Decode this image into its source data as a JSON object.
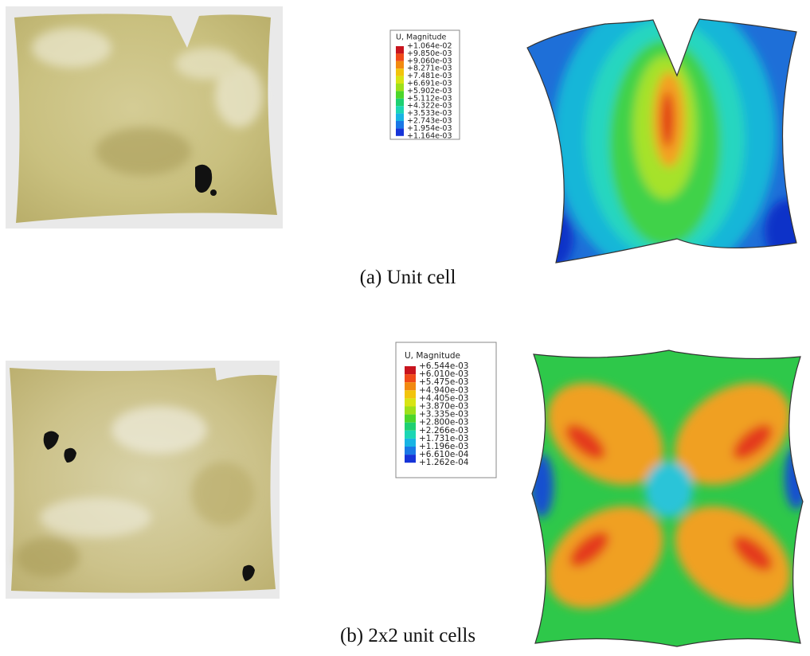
{
  "panels": [
    {
      "caption": "(a) Unit cell",
      "legend": {
        "title": "U, Magnitude",
        "labels": [
          "+1.064e-02",
          "+9.850e-03",
          "+9.060e-03",
          "+8.271e-03",
          "+7.481e-03",
          "+6.691e-03",
          "+5.902e-03",
          "+5.112e-03",
          "+4.322e-03",
          "+3.533e-03",
          "+2.743e-03",
          "+1.954e-03",
          "+1.164e-03"
        ]
      }
    },
    {
      "caption": "(b) 2x2 unit cells",
      "legend": {
        "title": "U, Magnitude",
        "labels": [
          "+6.544e-03",
          "+6.010e-03",
          "+5.475e-03",
          "+4.940e-03",
          "+4.405e-03",
          "+3.870e-03",
          "+3.335e-03",
          "+2.800e-03",
          "+2.266e-03",
          "+1.731e-03",
          "+1.196e-03",
          "+6.610e-04",
          "+1.262e-04"
        ]
      }
    }
  ]
}
